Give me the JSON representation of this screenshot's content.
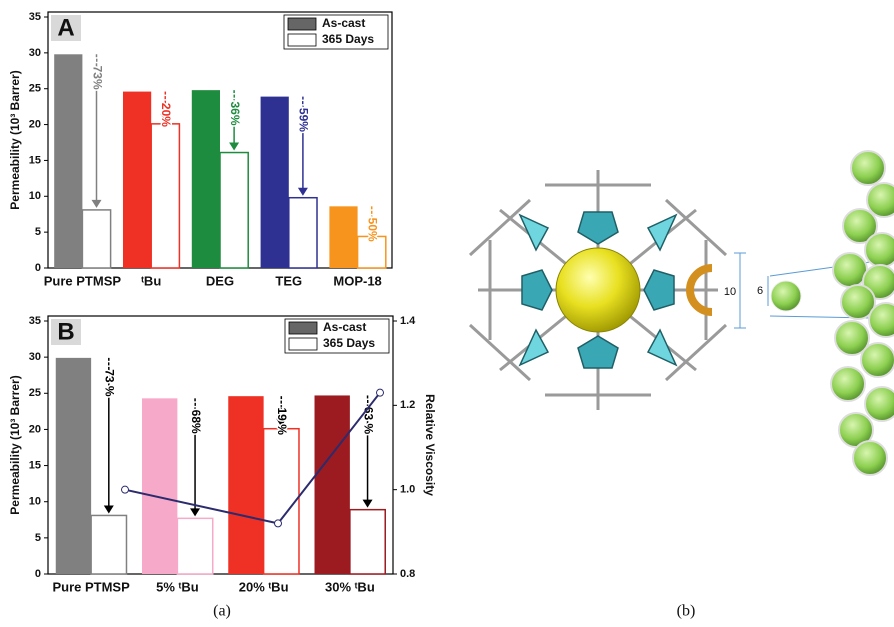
{
  "chart_data": [
    {
      "type": "bar",
      "panel": "A",
      "categories": [
        "Pure PTMSP",
        "ᵗBu",
        "DEG",
        "TEG",
        "MOP-18"
      ],
      "ylabel": "Permeability (10³ Barrer)",
      "ylim": [
        0,
        35
      ],
      "yticks": [
        0,
        5,
        10,
        15,
        20,
        25,
        30,
        35
      ],
      "legend": "upper right",
      "series": [
        {
          "name": "As-cast",
          "color": "#808080",
          "colors": [
            "#808080",
            "#ee3124",
            "#1e8c3e",
            "#2e3192",
            "#f7941d"
          ],
          "values": [
            29.8,
            24.6,
            24.8,
            23.9,
            8.6
          ]
        },
        {
          "name": "365 Days",
          "color": "#ffffff",
          "edge_colors": [
            "#808080",
            "#ee3124",
            "#1e8c3e",
            "#2e3192",
            "#f7941d"
          ],
          "values": [
            8.1,
            20.1,
            16.1,
            9.8,
            4.4
          ]
        }
      ],
      "annotations": [
        "- 73%",
        "- 20%",
        "- 36%",
        "- 59%",
        "- 50%"
      ],
      "annotation_colors": [
        "#808080",
        "#ee3124",
        "#1e8c3e",
        "#2e3192",
        "#f7941d"
      ]
    },
    {
      "type": "bar",
      "panel": "B",
      "categories": [
        "Pure PTMSP",
        "5% ᵗBu",
        "20% ᵗBu",
        "30% ᵗBu"
      ],
      "ylabel": "Permeability (10³ Barrer)",
      "y2label": "Relative Viscosity",
      "ylim": [
        0,
        35
      ],
      "yticks": [
        0,
        5,
        10,
        15,
        20,
        25,
        30,
        35
      ],
      "y2lim": [
        0.8,
        1.4
      ],
      "y2ticks": [
        0.8,
        {
          "value": 1,
          "label": "1.0"
        },
        1.2,
        1.4
      ],
      "legend": "upper right",
      "series": [
        {
          "name": "As-cast",
          "color": "#808080",
          "colors": [
            "#808080",
            "#f6a9c9",
            "#ee3124",
            "#9b1b20"
          ],
          "values": [
            29.9,
            24.3,
            24.6,
            24.7
          ]
        },
        {
          "name": "365 Days",
          "color": "#ffffff",
          "edge_colors": [
            "#808080",
            "#f6a9c9",
            "#ee3124",
            "#9b1b20"
          ],
          "values": [
            8.1,
            7.7,
            20.1,
            8.9
          ]
        },
        {
          "type": "line",
          "axis": "y2",
          "color": "#2b2b6e",
          "x": [
            5,
            20,
            30
          ],
          "values": [
            1.0,
            0.92,
            1.23
          ]
        }
      ],
      "annotations": [
        "- 73 %",
        "- 68%",
        "- 19 %",
        "- 63 %"
      ],
      "annotation_colors": [
        "#000000",
        "#000000",
        "#000000",
        "#000000"
      ]
    }
  ],
  "figure": {
    "captions": [
      "(a)",
      "(b)"
    ],
    "dimension_labels": [
      "10",
      "6"
    ]
  }
}
